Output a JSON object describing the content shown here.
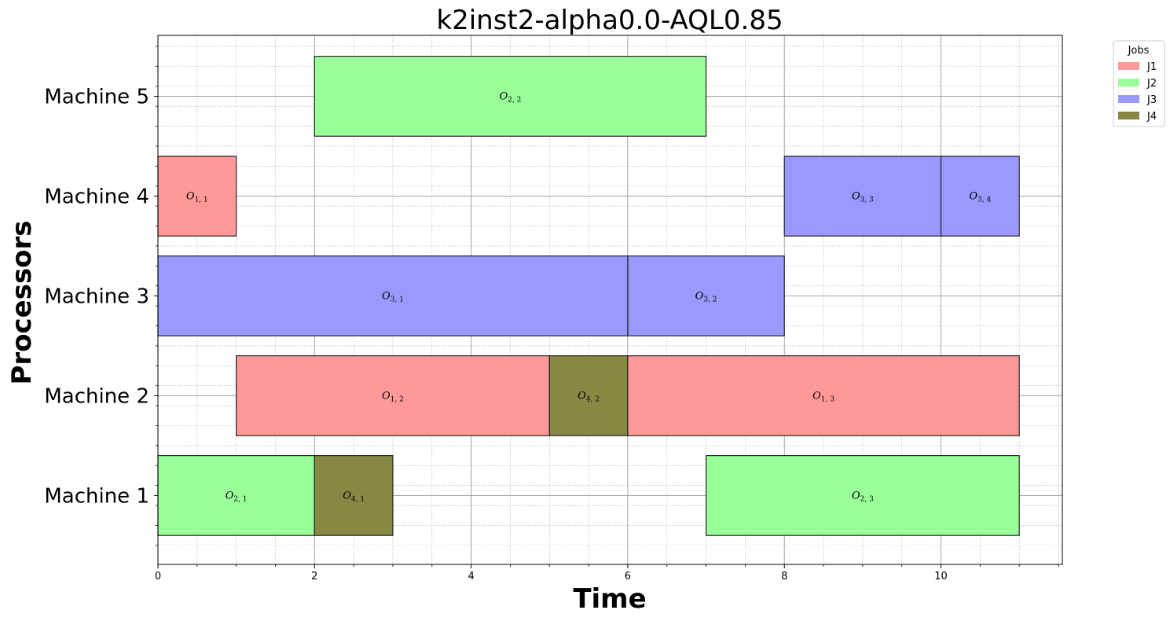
{
  "chart_data": {
    "type": "gantt",
    "title": "k2inst2-alpha0.0-AQL0.85",
    "xlabel": "Time",
    "ylabel": "Processors",
    "xlim": [
      0,
      11.55
    ],
    "xticks": [
      0,
      2,
      4,
      6,
      8,
      10
    ],
    "categories": [
      "Machine 1",
      "Machine 2",
      "Machine 3",
      "Machine 4",
      "Machine 5"
    ],
    "grid": true,
    "legend": {
      "title": "Jobs",
      "placement": "outside-top-right",
      "entries": [
        {
          "label": "J1",
          "color": "#ff9999"
        },
        {
          "label": "J2",
          "color": "#99ff99"
        },
        {
          "label": "J3",
          "color": "#9999ff"
        },
        {
          "label": "J4",
          "color": "#888844"
        }
      ]
    },
    "tasks": [
      {
        "machine": "Machine 5",
        "job": "J2",
        "label": "O",
        "sub": "2, 2",
        "start": 2,
        "end": 7
      },
      {
        "machine": "Machine 4",
        "job": "J1",
        "label": "O",
        "sub": "1, 1",
        "start": 0,
        "end": 1
      },
      {
        "machine": "Machine 4",
        "job": "J3",
        "label": "O",
        "sub": "3, 3",
        "start": 8,
        "end": 10
      },
      {
        "machine": "Machine 4",
        "job": "J3",
        "label": "O",
        "sub": "3, 4",
        "start": 10,
        "end": 11
      },
      {
        "machine": "Machine 3",
        "job": "J3",
        "label": "O",
        "sub": "3, 1",
        "start": 0,
        "end": 6
      },
      {
        "machine": "Machine 3",
        "job": "J3",
        "label": "O",
        "sub": "3, 2",
        "start": 6,
        "end": 8
      },
      {
        "machine": "Machine 2",
        "job": "J1",
        "label": "O",
        "sub": "1, 2",
        "start": 1,
        "end": 5
      },
      {
        "machine": "Machine 2",
        "job": "J4",
        "label": "O",
        "sub": "4, 2",
        "start": 5,
        "end": 6
      },
      {
        "machine": "Machine 2",
        "job": "J1",
        "label": "O",
        "sub": "1, 3",
        "start": 6,
        "end": 11
      },
      {
        "machine": "Machine 1",
        "job": "J2",
        "label": "O",
        "sub": "2, 1",
        "start": 0,
        "end": 2
      },
      {
        "machine": "Machine 1",
        "job": "J4",
        "label": "O",
        "sub": "4, 1",
        "start": 2,
        "end": 3
      },
      {
        "machine": "Machine 1",
        "job": "J2",
        "label": "O",
        "sub": "2, 3",
        "start": 7,
        "end": 11
      }
    ]
  }
}
